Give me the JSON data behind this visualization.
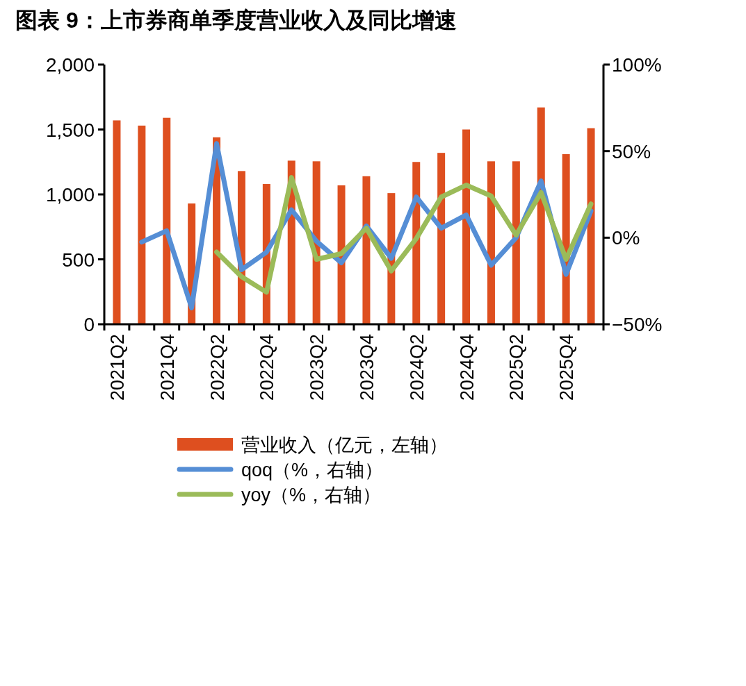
{
  "chart_data": {
    "type": "bar",
    "title": "图表 9：上市券商单季度营业收入及同比增速",
    "categories": [
      "2021Q2",
      null,
      "2021Q4",
      null,
      "2022Q2",
      null,
      "2022Q4",
      null,
      "2023Q2",
      null,
      "2023Q4",
      null,
      "2024Q2",
      null,
      "2024Q4",
      null,
      "2025Q2",
      null,
      "2025Q4",
      null
    ],
    "series": [
      {
        "name": "营业收入（亿元，左轴）",
        "color": "#de4f1f",
        "values": [
          1570,
          1530,
          1590,
          930,
          1440,
          1180,
          1080,
          1260,
          1255,
          1070,
          1140,
          1010,
          1250,
          1320,
          1500,
          1255,
          1255,
          1670,
          1310,
          1510
        ]
      },
      {
        "name": "qoq（%，右轴）",
        "type": "line",
        "axis": "y2",
        "color": "#558ed5",
        "values": [
          null,
          -2.5,
          4,
          -40.5,
          54.4,
          -18.5,
          -8.3,
          16.1,
          -2,
          -14.5,
          6.8,
          -11.9,
          23.5,
          5.5,
          13.1,
          -15.9,
          0,
          32.8,
          -21.2,
          15.5
        ]
      },
      {
        "name": "yoy（%，右轴）",
        "type": "line",
        "axis": "y2",
        "color": "#9bbb59",
        "values": [
          null,
          null,
          null,
          null,
          -8.3,
          -22.5,
          -31.5,
          34.8,
          -12.5,
          -9.2,
          5.5,
          -19.2,
          -0.5,
          23.5,
          30.4,
          24.1,
          1.5,
          26.1,
          -12.5,
          19.5
        ]
      }
    ],
    "ylim": [
      0,
      2000
    ],
    "yticks": [
      0,
      500,
      {
        "value": 1000,
        "label": "1,000"
      },
      {
        "value": 1500,
        "label": "1,500"
      },
      {
        "value": 2000,
        "label": "2,000"
      }
    ],
    "y2lim": [
      -50,
      100
    ],
    "y2ticks": [
      {
        "value": -50,
        "label": "−50%"
      },
      {
        "value": 0,
        "label": "0%"
      },
      {
        "value": 50,
        "label": "50%"
      },
      {
        "value": 100,
        "label": "100%"
      }
    ],
    "legend": "bottom"
  }
}
